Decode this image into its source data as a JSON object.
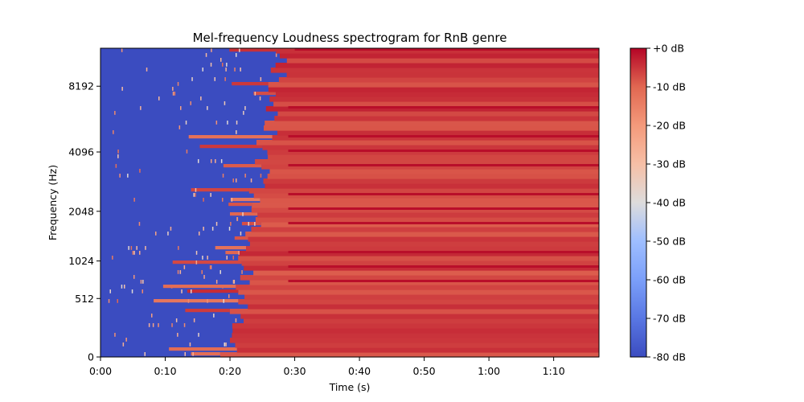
{
  "chart_data": {
    "type": "heatmap",
    "title": "Mel-frequency Loudness spectrogram for RnB genre",
    "xlabel": "Time (s)",
    "ylabel": "Frequency (Hz)",
    "xlim_seconds": [
      0,
      77
    ],
    "x_ticks": [
      {
        "value": 0,
        "label": "0:00"
      },
      {
        "value": 10,
        "label": "0:10"
      },
      {
        "value": 20,
        "label": "0:20"
      },
      {
        "value": 30,
        "label": "0:30"
      },
      {
        "value": 40,
        "label": "0:40"
      },
      {
        "value": 50,
        "label": "0:50"
      },
      {
        "value": 60,
        "label": "1:00"
      },
      {
        "value": 70,
        "label": "1:10"
      }
    ],
    "y_scale": "mel",
    "ylim_hz": [
      0,
      12000
    ],
    "y_ticks": [
      {
        "value": 0,
        "label": "0"
      },
      {
        "value": 512,
        "label": "512"
      },
      {
        "value": 1024,
        "label": "1024"
      },
      {
        "value": 2048,
        "label": "2048"
      },
      {
        "value": 4096,
        "label": "4096"
      },
      {
        "value": 8192,
        "label": "8192"
      }
    ],
    "colorbar": {
      "colormap": "coolwarm",
      "min_db": -80,
      "max_db": 0,
      "low_color": "#3b4cc0",
      "high_color": "#b40426",
      "ticks": [
        {
          "value": 0,
          "label": "+0 dB"
        },
        {
          "value": -10,
          "label": "-10 dB"
        },
        {
          "value": -20,
          "label": "-20 dB"
        },
        {
          "value": -30,
          "label": "-30 dB"
        },
        {
          "value": -40,
          "label": "-40 dB"
        },
        {
          "value": -50,
          "label": "-50 dB"
        },
        {
          "value": -60,
          "label": "-60 dB"
        },
        {
          "value": -70,
          "label": "-70 dB"
        },
        {
          "value": -80,
          "label": "-80 dB"
        }
      ]
    },
    "onset_profile": {
      "description_free_note": "",
      "low_band_onset_seconds": 20,
      "high_band_onset_seconds": 28,
      "full_band_loud_after_seconds": 37,
      "quiet_level_db": -80,
      "loud_level_db": -3
    }
  }
}
